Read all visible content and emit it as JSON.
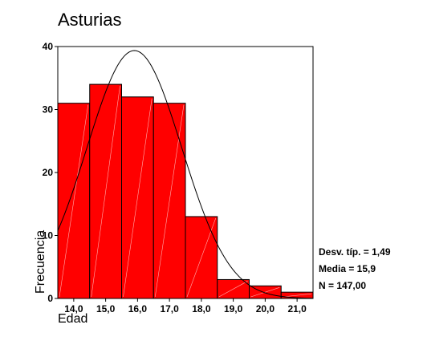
{
  "chart_data": {
    "type": "bar",
    "subtype": "histogram",
    "title": "Asturias",
    "xlabel": "Edad",
    "ylabel": "Frecuencia",
    "categories": [
      "14,0",
      "15,0",
      "16,0",
      "17,0",
      "18,0",
      "19,0",
      "20,0",
      "21,0"
    ],
    "x": [
      14,
      15,
      16,
      17,
      18,
      19,
      20,
      21
    ],
    "values": [
      31,
      34,
      32,
      31,
      13,
      3,
      2,
      1
    ],
    "bin_width": 1,
    "xlim": [
      13.5,
      21.5
    ],
    "ylim": [
      0,
      40
    ],
    "yticks": [
      0,
      10,
      20,
      30,
      40
    ],
    "normal_curve": {
      "mean": 15.9,
      "sd": 1.49,
      "n": 147
    },
    "stats": {
      "sd_label": "Desv. típ. = 1,49",
      "mean_label": "Media = 15,9",
      "n_label": "N = 147,00"
    },
    "grid": false,
    "legend": "none",
    "colors": {
      "bar_fill": "#ff0000",
      "bar_stroke": "#000000",
      "curve": "#000000",
      "background": "#ffffff"
    }
  }
}
